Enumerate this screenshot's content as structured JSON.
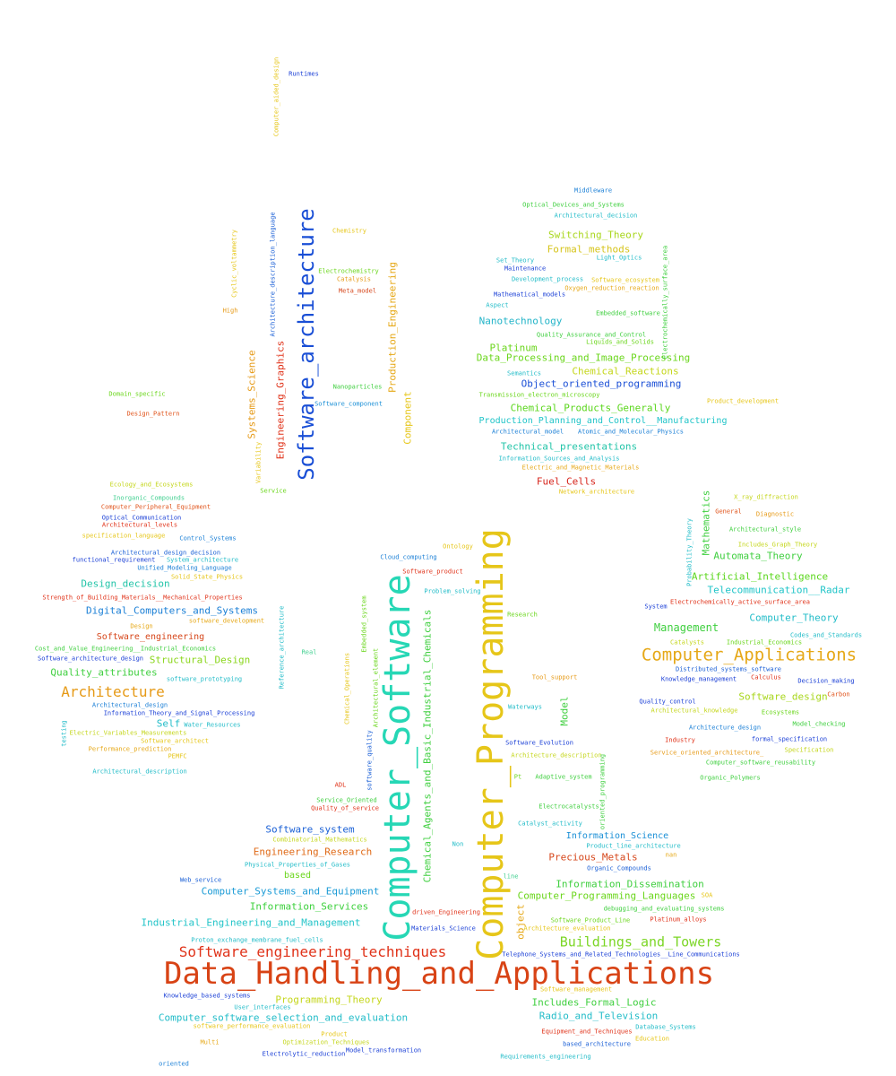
{
  "words": [
    {
      "text": "Data_Handling_and_Applications",
      "color": "#d84315"
    },
    {
      "text": "Computer_Programming",
      "color": "#e6c619"
    },
    {
      "text": "Computer_Software",
      "color": "#26d7b5"
    },
    {
      "text": "Software_architecture",
      "color": "#1a4fd6"
    },
    {
      "text": "Computer_Applications",
      "color": "#e6a817"
    },
    {
      "text": "Software_engineering_techniques",
      "color": "#e0331a"
    },
    {
      "text": "Architecture",
      "color": "#e69a17"
    },
    {
      "text": "Buildings_and_Towers",
      "color": "#7cd626"
    },
    {
      "text": "Industrial_Engineering_and_Management",
      "color": "#22c4c8"
    },
    {
      "text": "Computer_Systems_and_Equipment",
      "color": "#1b9bd6"
    },
    {
      "text": "Information_Services",
      "color": "#3cd03c"
    },
    {
      "text": "Engineering_Research",
      "color": "#e06a17"
    },
    {
      "text": "Software_system",
      "color": "#1a60d6"
    },
    {
      "text": "Computer_software_selection_and_evaluation",
      "color": "#22bcc8"
    },
    {
      "text": "Programming_Theory",
      "color": "#c4d61b"
    },
    {
      "text": "Digital_Computers_and_Systems",
      "color": "#1a7fd6"
    },
    {
      "text": "Quality_attributes",
      "color": "#3fcf3f"
    },
    {
      "text": "Design_decision",
      "color": "#22c4a8"
    },
    {
      "text": "Structural_Design",
      "color": "#8ad61b"
    },
    {
      "text": "Software_engineering",
      "color": "#d6461a"
    },
    {
      "text": "Self",
      "color": "#22bcc8"
    },
    {
      "text": "Data_Processing_and_Image_Processing",
      "color": "#6ad61b"
    },
    {
      "text": "Object_oriented_programming",
      "color": "#1a4fd6"
    },
    {
      "text": "Chemical_Products_Generally",
      "color": "#5ad61b"
    },
    {
      "text": "Production_Planning_and_Control__Manufacturing",
      "color": "#1fc4c8"
    },
    {
      "text": "Technical_presentations",
      "color": "#22c4a8"
    },
    {
      "text": "Fuel_Cells",
      "color": "#d6231a"
    },
    {
      "text": "Nanotechnology",
      "color": "#22b4c8"
    },
    {
      "text": "Platinum",
      "color": "#6ad61b"
    },
    {
      "text": "Chemical_Reactions",
      "color": "#c4d61b"
    },
    {
      "text": "Switching_Theory",
      "color": "#a8d61b"
    },
    {
      "text": "Formal_methods",
      "color": "#d6c41b"
    },
    {
      "text": "Management",
      "color": "#3fcf3f"
    },
    {
      "text": "Artificial_Intelligence",
      "color": "#5ad61b"
    },
    {
      "text": "Telecommunication__Radar",
      "color": "#1fc4c8"
    },
    {
      "text": "Automata_Theory",
      "color": "#3fcf3f"
    },
    {
      "text": "Computer_Theory",
      "color": "#22bcc8"
    },
    {
      "text": "Software_design",
      "color": "#a8d61b"
    },
    {
      "text": "Information_Science",
      "color": "#1a8fd6"
    },
    {
      "text": "Precious_Metals",
      "color": "#d6461a"
    },
    {
      "text": "Information_Dissemination",
      "color": "#3fcf3f"
    },
    {
      "text": "Computer_Programming_Languages",
      "color": "#6ad61b"
    },
    {
      "text": "Includes_Formal_Logic",
      "color": "#3fcf3f"
    },
    {
      "text": "Radio_and_Television",
      "color": "#22bcc8"
    },
    {
      "text": "Engineering_Graphics",
      "color": "#e0331a"
    },
    {
      "text": "Systems_Science",
      "color": "#e69a17"
    },
    {
      "text": "Production_Engineering",
      "color": "#e6a817"
    },
    {
      "text": "Component",
      "color": "#e6c619"
    },
    {
      "text": "Chemical_Agents_and_Basic_Industrial_Chemicals",
      "color": "#3fcf3f"
    },
    {
      "text": "Mathematics",
      "color": "#3fcf3f"
    },
    {
      "text": "Model",
      "color": "#3fcf3f"
    },
    {
      "text": "based",
      "color": "#6ad61b"
    },
    {
      "text": "object",
      "color": "#e6a817"
    },
    {
      "text": "Runtimes",
      "color": "#1a3fd6"
    },
    {
      "text": "Computer_aided_design",
      "color": "#e6c619"
    },
    {
      "text": "Middleware",
      "color": "#1a7fd6"
    },
    {
      "text": "Optical_Devices_and_Systems",
      "color": "#3fcf3f"
    },
    {
      "text": "Architectural_decision",
      "color": "#22bcc8"
    },
    {
      "text": "Set_Theory",
      "color": "#22bcc8"
    },
    {
      "text": "Maintenance",
      "color": "#1a3fd6"
    },
    {
      "text": "Light_Optics",
      "color": "#22bcc8"
    },
    {
      "text": "Development_process",
      "color": "#22bcc8"
    },
    {
      "text": "Software_ecosystem",
      "color": "#e6c619"
    },
    {
      "text": "Oxygen_reduction_reaction",
      "color": "#e6a817"
    },
    {
      "text": "Mathematical_models",
      "color": "#1a3fd6"
    },
    {
      "text": "Aspect",
      "color": "#22bcc8"
    },
    {
      "text": "Embedded_software",
      "color": "#3fcf3f"
    },
    {
      "text": "Quality_Assurance_and_Control",
      "color": "#3fcf3f"
    },
    {
      "text": "Liquids_and_Solids",
      "color": "#6ad61b"
    },
    {
      "text": "Semantics",
      "color": "#22bcc8"
    },
    {
      "text": "Transmission_electron_microscopy",
      "color": "#6ad61b"
    },
    {
      "text": "Product_development",
      "color": "#e6c619"
    },
    {
      "text": "Architectural_model",
      "color": "#1a7fd6"
    },
    {
      "text": "Atomic_and_Molecular_Physics",
      "color": "#1a7fd6"
    },
    {
      "text": "Information_Sources_and_Analysis",
      "color": "#22bcc8"
    },
    {
      "text": "Electric_and_Magnetic_Materials",
      "color": "#e6a817"
    },
    {
      "text": "Network_architecture",
      "color": "#e6c619"
    },
    {
      "text": "Electrochemically_surface_area",
      "color": "#3fcf3f"
    },
    {
      "text": "Chemistry",
      "color": "#e6c619"
    },
    {
      "text": "Electrochemistry",
      "color": "#6ad61b"
    },
    {
      "text": "Catalysis",
      "color": "#e69a17"
    },
    {
      "text": "Meta_model",
      "color": "#d6461a"
    },
    {
      "text": "Nanoparticles",
      "color": "#3fcf3f"
    },
    {
      "text": "Software_component",
      "color": "#1a8fd6"
    },
    {
      "text": "Cyclic_voltammetry",
      "color": "#e6c619"
    },
    {
      "text": "Architecture_description_language",
      "color": "#1a5fd6"
    },
    {
      "text": "High",
      "color": "#e69a17"
    },
    {
      "text": "Variability",
      "color": "#e6c619"
    },
    {
      "text": "Service",
      "color": "#6ad61b"
    },
    {
      "text": "Domain_specific",
      "color": "#6ad61b"
    },
    {
      "text": "Design_Pattern",
      "color": "#e0531a"
    },
    {
      "text": "Ecology_and_Ecosystems",
      "color": "#c4d61b"
    },
    {
      "text": "Inorganic_Compounds",
      "color": "#3fcf8f"
    },
    {
      "text": "Computer_Peripheral_Equipment",
      "color": "#e0531a"
    },
    {
      "text": "Optical_Communication",
      "color": "#1a3fd6"
    },
    {
      "text": "Architectural_levels",
      "color": "#e0331a"
    },
    {
      "text": "specification_language",
      "color": "#e6c619"
    },
    {
      "text": "Control_Systems",
      "color": "#1a7fd6"
    },
    {
      "text": "Architectural_design_decision",
      "color": "#1a5fd6"
    },
    {
      "text": "functional_requirement",
      "color": "#1a3fd6"
    },
    {
      "text": "System_architecture",
      "color": "#22bcc8"
    },
    {
      "text": "Unified_Modeling_Language",
      "color": "#1a7fd6"
    },
    {
      "text": "Solid_State_Physics",
      "color": "#e6c619"
    },
    {
      "text": "Strength_of_Building_Materials__Mechanical_Properties",
      "color": "#e0331a"
    },
    {
      "text": "Design",
      "color": "#e6a817"
    },
    {
      "text": "software_development",
      "color": "#e6a817"
    },
    {
      "text": "Cost_and_Value_Engineering__Industrial_Economics",
      "color": "#3fcf3f"
    },
    {
      "text": "Software_architecture_design",
      "color": "#1a3fd6"
    },
    {
      "text": "software_prototyping",
      "color": "#22bcc8"
    },
    {
      "text": "Architectural_design",
      "color": "#1a7fd6"
    },
    {
      "text": "Information_Theory_and_Signal_Processing",
      "color": "#1a3fd6"
    },
    {
      "text": "Water_Resources",
      "color": "#22bcc8"
    },
    {
      "text": "Electric_Variables_Measurements",
      "color": "#c4d61b"
    },
    {
      "text": "Software_architect",
      "color": "#e6c619"
    },
    {
      "text": "Performance_prediction",
      "color": "#e6a817"
    },
    {
      "text": "PEMFC",
      "color": "#e6c619"
    },
    {
      "text": "Architectural_description",
      "color": "#22bcc8"
    },
    {
      "text": "testing",
      "color": "#22bcc8"
    },
    {
      "text": "Reference_architecture",
      "color": "#22bcc8"
    },
    {
      "text": "Real",
      "color": "#3fcf8f"
    },
    {
      "text": "Embedded_system",
      "color": "#6ad61b"
    },
    {
      "text": "Chemical_Operations",
      "color": "#e6c619"
    },
    {
      "text": "Architectural_element",
      "color": "#6ad61b"
    },
    {
      "text": "software_quality",
      "color": "#1a5fd6"
    },
    {
      "text": "ADL",
      "color": "#e0331a"
    },
    {
      "text": "Service_Oriented",
      "color": "#3fcf3f"
    },
    {
      "text": "Quality_of_service",
      "color": "#e0331a"
    },
    {
      "text": "Combinatorial_Mathematics",
      "color": "#c4d61b"
    },
    {
      "text": "Physical_Properties_of_Gases",
      "color": "#22bcc8"
    },
    {
      "text": "Web_service",
      "color": "#1a5fd6"
    },
    {
      "text": "Proton_exchange_membrane_fuel_cells",
      "color": "#22bcc8"
    },
    {
      "text": "Knowledge_based_systems",
      "color": "#1a3fd6"
    },
    {
      "text": "User_interfaces",
      "color": "#22bcc8"
    },
    {
      "text": "software_performance_evaluation",
      "color": "#e6c619"
    },
    {
      "text": "Product",
      "color": "#e6c619"
    },
    {
      "text": "Multi",
      "color": "#e6a817"
    },
    {
      "text": "Optimization_Techniques",
      "color": "#c4d61b"
    },
    {
      "text": "Electrolytic_reduction",
      "color": "#1a3fd6"
    },
    {
      "text": "Model_transformation",
      "color": "#1a3fd6"
    },
    {
      "text": "oriented",
      "color": "#1a7fd6"
    },
    {
      "text": "Ontology",
      "color": "#e6c619"
    },
    {
      "text": "Cloud_computing",
      "color": "#1a7fd6"
    },
    {
      "text": "Software_product",
      "color": "#e0331a"
    },
    {
      "text": "Problem_solving",
      "color": "#22bcc8"
    },
    {
      "text": "Research",
      "color": "#6ad61b"
    },
    {
      "text": "Tool_support",
      "color": "#e69a17"
    },
    {
      "text": "Waterways",
      "color": "#22bcc8"
    },
    {
      "text": "Software_Evolution",
      "color": "#1a3fd6"
    },
    {
      "text": "Architecture_description",
      "color": "#c4d61b"
    },
    {
      "text": "Pt",
      "color": "#6ad61b"
    },
    {
      "text": "Adaptive_system",
      "color": "#3fcf3f"
    },
    {
      "text": "Electrocatalysts",
      "color": "#3fcf3f"
    },
    {
      "text": "Catalyst_activity",
      "color": "#22bcc8"
    },
    {
      "text": "oriented_programming",
      "color": "#3fcf3f"
    },
    {
      "text": "Non",
      "color": "#22bcc8"
    },
    {
      "text": "driven_Engineering",
      "color": "#e0331a"
    },
    {
      "text": "Materials_Science",
      "color": "#1a3fd6"
    },
    {
      "text": "line",
      "color": "#3fcf8f"
    },
    {
      "text": "Product_line_architecture",
      "color": "#22bcc8"
    },
    {
      "text": "nan",
      "color": "#e6a817"
    },
    {
      "text": "Organic_Compounds",
      "color": "#1a5fd6"
    },
    {
      "text": "SOA",
      "color": "#e6c619"
    },
    {
      "text": "debugging_and_evaluating_systems",
      "color": "#3fcf3f"
    },
    {
      "text": "Software_Product_Line",
      "color": "#6ad61b"
    },
    {
      "text": "Platinum_alloys",
      "color": "#e0331a"
    },
    {
      "text": "Architecture_evaluation",
      "color": "#e6c619"
    },
    {
      "text": "Telephone_Systems_and_Related_Technologies__Line_Communications",
      "color": "#1a3fd6"
    },
    {
      "text": "Software_management",
      "color": "#e6c619"
    },
    {
      "text": "Database_Systems",
      "color": "#22bcc8"
    },
    {
      "text": "Equipment_and_Techniques",
      "color": "#e0331a"
    },
    {
      "text": "Education",
      "color": "#e6c619"
    },
    {
      "text": "based_architecture",
      "color": "#1a5fd6"
    },
    {
      "text": "Requirements_engineering",
      "color": "#22bcc8"
    },
    {
      "text": "X_ray_diffraction",
      "color": "#c4d61b"
    },
    {
      "text": "General",
      "color": "#e0531a"
    },
    {
      "text": "Diagnostic",
      "color": "#e69a17"
    },
    {
      "text": "Architectural_style",
      "color": "#3fcf3f"
    },
    {
      "text": "Includes_Graph_Theory",
      "color": "#c4d61b"
    },
    {
      "text": "Probability_Theory",
      "color": "#22bcc8"
    },
    {
      "text": "Electrochemically_active_surface_area",
      "color": "#e0331a"
    },
    {
      "text": "System",
      "color": "#1a3fd6"
    },
    {
      "text": "Codes_and_Standards",
      "color": "#22bcc8"
    },
    {
      "text": "Catalysts",
      "color": "#c4d61b"
    },
    {
      "text": "Industrial_Economics",
      "color": "#6ad61b"
    },
    {
      "text": "Distributed_systems_software",
      "color": "#1a5fd6"
    },
    {
      "text": "Knowledge_management",
      "color": "#1a3fd6"
    },
    {
      "text": "Calculus",
      "color": "#e0331a"
    },
    {
      "text": "Decision_making",
      "color": "#1a3fd6"
    },
    {
      "text": "Carbon",
      "color": "#e0531a"
    },
    {
      "text": "Quality_control",
      "color": "#1a3fd6"
    },
    {
      "text": "Architectural_knowledge",
      "color": "#c4d61b"
    },
    {
      "text": "Ecosystems",
      "color": "#6ad61b"
    },
    {
      "text": "Architecture_design",
      "color": "#1a7fd6"
    },
    {
      "text": "Model_checking",
      "color": "#3fcf3f"
    },
    {
      "text": "Industry",
      "color": "#e0331a"
    },
    {
      "text": "formal_specification",
      "color": "#1a3fd6"
    },
    {
      "text": "Specification",
      "color": "#c4d61b"
    },
    {
      "text": "Service_oriented_architecture_",
      "color": "#e69a17"
    },
    {
      "text": "Computer_software_reusability",
      "color": "#3fcf3f"
    },
    {
      "text": "Organic_Polymers",
      "color": "#3fcf3f"
    }
  ]
}
